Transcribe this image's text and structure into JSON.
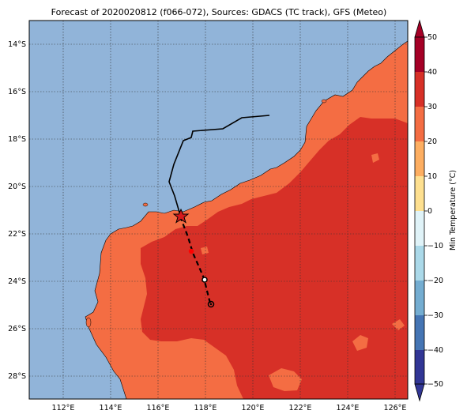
{
  "title": "Forecast of 2020020812 (f066-072), Sources: GDACS (TC track), GFS (Meteo)",
  "axes": {
    "lon_ticks": [
      "112°E",
      "114°E",
      "116°E",
      "118°E",
      "120°E",
      "122°E",
      "124°E",
      "126°E"
    ],
    "lat_ticks": [
      "14°S",
      "16°S",
      "18°S",
      "20°S",
      "22°S",
      "24°S",
      "26°S",
      "28°S"
    ]
  },
  "colorbar": {
    "label": "Min Temperature (°C)",
    "ticks": [
      "50",
      "40",
      "30",
      "20",
      "10",
      "0",
      "−10",
      "−20",
      "−30",
      "−40",
      "−50"
    ],
    "colors": [
      "#a50026",
      "#d73027",
      "#f46d43",
      "#fdae61",
      "#fee090",
      "#ffffbf",
      "#e0f3f8",
      "#abd9e9",
      "#74add1",
      "#4575b4",
      "#313695"
    ]
  },
  "map_colors": {
    "ocean": "#91b4d9",
    "land_warm": "#f46d43",
    "land_hot": "#d73027"
  },
  "track": {
    "past_color": "#000000",
    "forecast_color": "#000000",
    "current_marker_color": "#d7191c",
    "forecast_point_color": "#ff0000"
  }
}
